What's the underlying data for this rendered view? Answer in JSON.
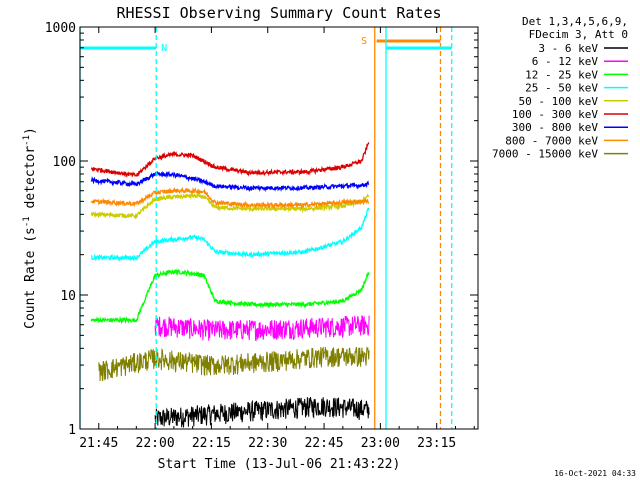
{
  "chart_data": {
    "type": "line",
    "title": "RHESSI Observing Summary Count Rates",
    "xlabel": "Start Time (13-Jul-06 21:43:22)",
    "ylabel_main": "Count Rate (s",
    "ylabel_sup1": "-1",
    "ylabel_mid": " detector",
    "ylabel_sup2": "-1",
    "ylabel_end": ")",
    "y_scale": "log",
    "ylim": [
      1,
      1000
    ],
    "xlim_minutes": [
      -5,
      101
    ],
    "xlim_labels": [
      "21:40",
      "23:26"
    ],
    "x_ticks": [
      {
        "min": 0,
        "label": "21:45"
      },
      {
        "min": 15,
        "label": "22:00"
      },
      {
        "min": 30,
        "label": "22:15"
      },
      {
        "min": 45,
        "label": "22:30"
      },
      {
        "min": 60,
        "label": "22:45"
      },
      {
        "min": 75,
        "label": "23:00"
      },
      {
        "min": 90,
        "label": "23:15"
      }
    ],
    "y_ticks": [
      {
        "value": 1,
        "label": "1"
      },
      {
        "value": 10,
        "label": "10"
      },
      {
        "value": 100,
        "label": "100"
      },
      {
        "value": 1000,
        "label": "1000"
      }
    ],
    "legend": {
      "header": [
        "Det 1,3,4,5,6,9,",
        "FDecim 3, Att 0"
      ],
      "placement": "right"
    },
    "series": [
      {
        "name": "3 - 6 keV",
        "color": "#000000",
        "x": [
          "21:45",
          "22:00",
          "22:15",
          "22:30",
          "22:45",
          "22:57"
        ],
        "values": [
          null,
          1.2,
          1.3,
          null,
          1.5,
          1.4
        ]
      },
      {
        "name": "6 - 12 keV",
        "color": "#ff00ff",
        "x": [
          "21:45",
          "22:00",
          "22:15",
          "22:30",
          "22:45",
          "22:57"
        ],
        "values": [
          null,
          6.0,
          5.5,
          5.6,
          5.8,
          6.0
        ]
      },
      {
        "name": "12 - 25 keV",
        "color": "#00ff00",
        "x": [
          "21:43",
          "21:55",
          "22:00",
          "22:05",
          "22:10",
          "22:13",
          "22:16",
          "22:25",
          "22:40",
          "22:50",
          "22:55",
          "22:57"
        ],
        "values": [
          6.5,
          6.5,
          14.0,
          15.0,
          14.5,
          14.0,
          9.0,
          8.5,
          8.5,
          9.0,
          11.0,
          15.0
        ]
      },
      {
        "name": "25 - 50 keV",
        "color": "#00ffff",
        "x": [
          "21:43",
          "21:55",
          "22:00",
          "22:05",
          "22:10",
          "22:13",
          "22:16",
          "22:25",
          "22:40",
          "22:50",
          "22:55",
          "22:57"
        ],
        "values": [
          19.0,
          19.0,
          25.0,
          26.0,
          27.0,
          26.0,
          21.0,
          20.0,
          21.0,
          25.0,
          32.0,
          45.0
        ]
      },
      {
        "name": "50 - 100 keV",
        "color": "#cccc00",
        "x": [
          "21:43",
          "21:55",
          "22:00",
          "22:05",
          "22:10",
          "22:13",
          "22:16",
          "22:25",
          "22:40",
          "22:50",
          "22:55",
          "22:57"
        ],
        "values": [
          40.0,
          39.0,
          52.0,
          54.0,
          55.0,
          54.0,
          45.0,
          44.0,
          44.0,
          46.0,
          50.0,
          55.0
        ]
      },
      {
        "name": "100 - 300 keV",
        "color": "#dd0000",
        "x": [
          "21:43",
          "21:55",
          "22:00",
          "22:05",
          "22:10",
          "22:13",
          "22:16",
          "22:25",
          "22:40",
          "22:50",
          "22:55",
          "22:57"
        ],
        "values": [
          88.0,
          78.0,
          105.0,
          112.0,
          110.0,
          100.0,
          90.0,
          82.0,
          83.0,
          90.0,
          100.0,
          140.0
        ]
      },
      {
        "name": "300 - 800 keV",
        "color": "#0000ff",
        "x": [
          "21:43",
          "21:55",
          "22:00",
          "22:05",
          "22:10",
          "22:13",
          "22:16",
          "22:25",
          "22:40",
          "22:50",
          "22:55",
          "22:57"
        ],
        "values": [
          72.0,
          67.0,
          80.0,
          79.0,
          74.0,
          70.0,
          65.0,
          63.0,
          63.0,
          65.0,
          66.0,
          68.0
        ]
      },
      {
        "name": "800 - 7000 keV",
        "color": "#ff8800",
        "x": [
          "21:43",
          "21:55",
          "22:00",
          "22:05",
          "22:10",
          "22:13",
          "22:16",
          "22:25",
          "22:40",
          "22:50",
          "22:55",
          "22:57"
        ],
        "values": [
          50.0,
          48.0,
          58.0,
          60.0,
          60.0,
          59.0,
          49.0,
          47.0,
          47.0,
          49.0,
          50.0,
          50.0
        ]
      },
      {
        "name": "7000 - 15000 keV",
        "color": "#808000",
        "x": [
          "21:45",
          "22:00",
          "22:15",
          "22:30",
          "22:45",
          "22:57"
        ],
        "values": [
          2.7,
          3.4,
          3.0,
          3.2,
          3.5,
          3.5
        ]
      }
    ],
    "annotations": [
      {
        "text": "N",
        "color": "#00ffff"
      },
      {
        "text": "S",
        "color": "#ff8800"
      }
    ],
    "timestamp": "16-Oct-2021 04:33"
  }
}
